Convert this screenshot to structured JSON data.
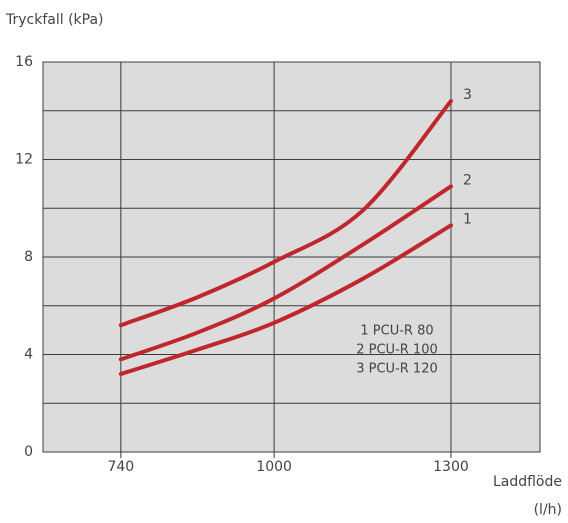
{
  "chart_data": {
    "type": "line",
    "title": "Tryckfall (kPa)",
    "xlabel": [
      "Laddflöde",
      "(l/h)"
    ],
    "xlim": [
      608,
      1451
    ],
    "xticks": [
      740,
      1000,
      1300
    ],
    "ylim": [
      0,
      16
    ],
    "yticks": [
      0,
      4,
      8,
      12,
      16
    ],
    "yminor": [
      2,
      6,
      10,
      14
    ],
    "grid": true,
    "x": [
      740,
      870,
      1000,
      1150,
      1300
    ],
    "series": [
      {
        "name": "1 PCU-R 80",
        "end_label": "1",
        "color": "#c0272d",
        "values": [
          3.2,
          4.2,
          5.3,
          7.1,
          9.3
        ]
      },
      {
        "name": "2 PCU-R 100",
        "end_label": "2",
        "color": "#c0272d",
        "values": [
          3.8,
          4.9,
          6.3,
          8.5,
          10.9
        ]
      },
      {
        "name": "3 PCU-R 120",
        "end_label": "3",
        "color": "#c0272d",
        "values": [
          5.2,
          6.35,
          7.8,
          9.9,
          14.4
        ]
      }
    ]
  }
}
